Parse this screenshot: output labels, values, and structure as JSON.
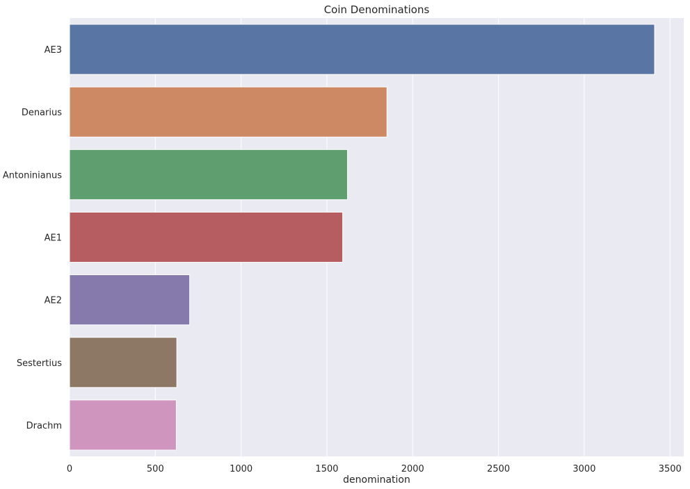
{
  "chart_data": {
    "type": "bar",
    "orientation": "horizontal",
    "title": "Coin Denominations",
    "xlabel": "denomination",
    "ylabel": "",
    "categories": [
      "AE3",
      "Denarius",
      "Antoninianus",
      "AE1",
      "AE2",
      "Sestertius",
      "Drachm"
    ],
    "values": [
      3410,
      1850,
      1620,
      1592,
      700,
      625,
      622
    ],
    "colors": [
      "#5975a4",
      "#cc8963",
      "#5f9e6e",
      "#b55d60",
      "#857aab",
      "#8d7866",
      "#d095bf"
    ],
    "xlim": [
      0,
      3580
    ],
    "xticks": [
      0,
      500,
      1000,
      1500,
      2000,
      2500,
      3000,
      3500
    ],
    "grid": true,
    "background": "#eaeaf2",
    "grid_color": "#ffffff"
  }
}
